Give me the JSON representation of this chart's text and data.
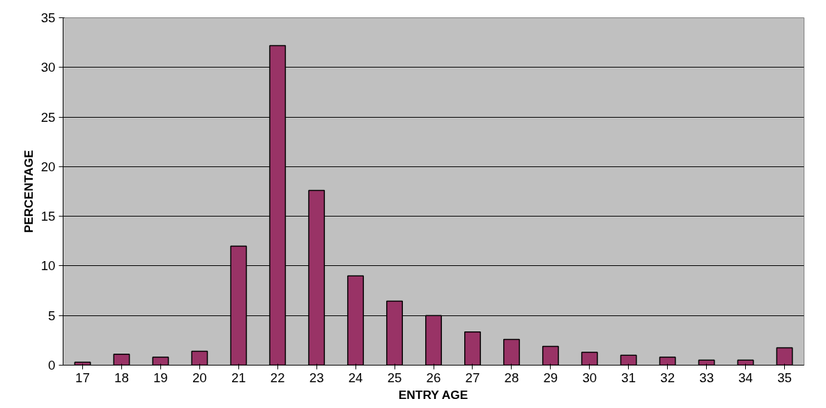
{
  "chart_data": {
    "type": "bar",
    "xlabel": "ENTRY AGE",
    "ylabel": "PERCENTAGE",
    "categories": [
      "17",
      "18",
      "19",
      "20",
      "21",
      "22",
      "23",
      "24",
      "25",
      "26",
      "27",
      "28",
      "29",
      "30",
      "31",
      "32",
      "33",
      "34",
      "35"
    ],
    "values": [
      0.3,
      1.1,
      0.8,
      1.4,
      12.0,
      32.2,
      17.6,
      9.0,
      6.45,
      5.0,
      3.35,
      2.6,
      1.9,
      1.3,
      1.0,
      0.8,
      0.5,
      0.5,
      1.75
    ],
    "color": "#993366",
    "ylim": [
      0,
      35
    ],
    "yticks": [
      0,
      5,
      10,
      15,
      20,
      25,
      30,
      35
    ],
    "grid": "y"
  }
}
